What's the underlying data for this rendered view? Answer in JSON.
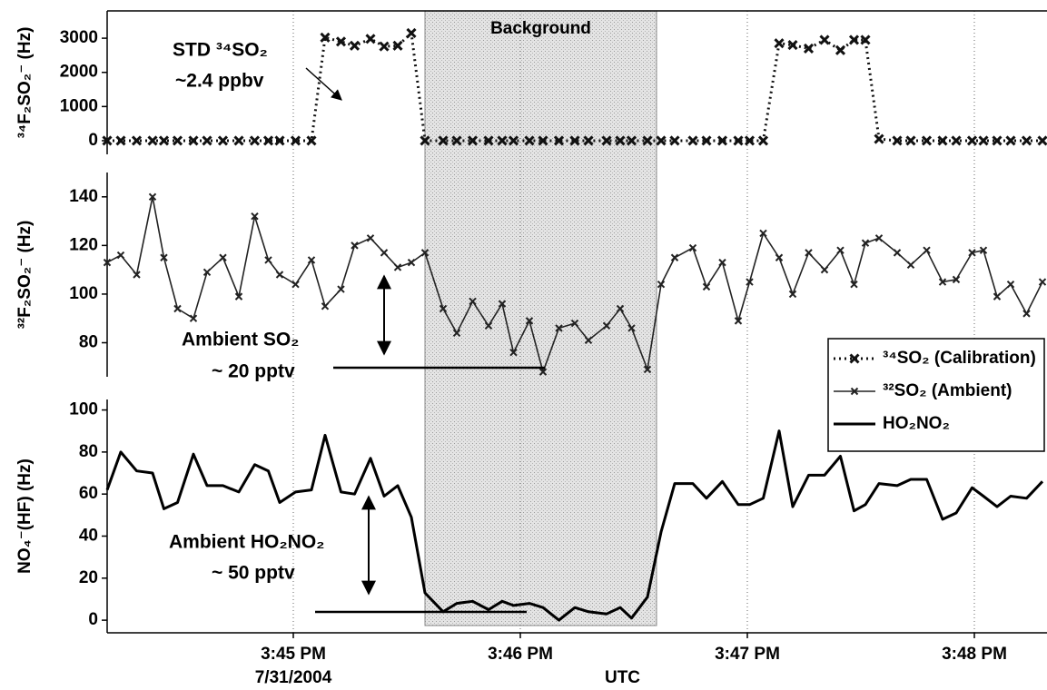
{
  "chart_data": [
    {
      "type": "line",
      "y_label": "³⁴F₂SO₂⁻ (Hz)",
      "x": [
        44.18,
        44.24,
        44.31,
        44.38,
        44.43,
        44.49,
        44.56,
        44.62,
        44.69,
        44.76,
        44.83,
        44.89,
        44.94,
        45.01,
        45.08,
        45.14,
        45.21,
        45.27,
        45.34,
        45.4,
        45.46,
        45.52,
        45.58,
        45.66,
        45.72,
        45.79,
        45.86,
        45.92,
        45.97,
        46.04,
        46.1,
        46.17,
        46.24,
        46.3,
        46.38,
        46.44,
        46.49,
        46.56,
        46.62,
        46.68,
        46.76,
        46.82,
        46.89,
        46.96,
        47.01,
        47.07,
        47.14,
        47.2,
        47.27,
        47.34,
        47.41,
        47.47,
        47.52,
        47.58,
        47.66,
        47.72,
        47.79,
        47.86,
        47.92,
        47.99,
        48.04,
        48.1,
        48.16,
        48.23,
        48.3
      ],
      "series": [
        {
          "name": "³⁴SO₂ (Calibration)",
          "color": "#111111",
          "line_style": "dotted",
          "marker": "x",
          "line_width": 3,
          "values": [
            0,
            0,
            0,
            0,
            0,
            0,
            0,
            0,
            0,
            0,
            0,
            0,
            0,
            0,
            0,
            3020,
            2900,
            2780,
            2980,
            2760,
            2780,
            3150,
            0,
            0,
            0,
            0,
            0,
            0,
            0,
            0,
            0,
            0,
            0,
            0,
            0,
            0,
            0,
            0,
            0,
            0,
            0,
            0,
            0,
            0,
            0,
            0,
            2850,
            2800,
            2700,
            2950,
            2650,
            2950,
            2950,
            50,
            0,
            0,
            0,
            0,
            0,
            0,
            0,
            0,
            0,
            0,
            0
          ]
        }
      ],
      "xlim": [
        44.18,
        48.32
      ],
      "ylim": [
        -400,
        3800
      ],
      "yticks": [
        0,
        1000,
        2000,
        3000
      ],
      "shaded_x": [
        45.58,
        46.6
      ],
      "shaded_label": "Background",
      "annotations": [
        "STD ³⁴SO₂",
        "~2.4 ppbv"
      ]
    },
    {
      "type": "line",
      "y_label": "³²F₂SO₂⁻ (Hz)",
      "x": [
        44.18,
        44.24,
        44.31,
        44.38,
        44.43,
        44.49,
        44.56,
        44.62,
        44.69,
        44.76,
        44.83,
        44.89,
        44.94,
        45.01,
        45.08,
        45.14,
        45.21,
        45.27,
        45.34,
        45.4,
        45.46,
        45.52,
        45.58,
        45.66,
        45.72,
        45.79,
        45.86,
        45.92,
        45.97,
        46.04,
        46.1,
        46.17,
        46.24,
        46.3,
        46.38,
        46.44,
        46.49,
        46.56,
        46.62,
        46.68,
        46.76,
        46.82,
        46.89,
        46.96,
        47.01,
        47.07,
        47.14,
        47.2,
        47.27,
        47.34,
        47.41,
        47.47,
        47.52,
        47.58,
        47.66,
        47.72,
        47.79,
        47.86,
        47.92,
        47.99,
        48.04,
        48.1,
        48.16,
        48.23,
        48.3
      ],
      "series": [
        {
          "name": "³²SO₂ (Ambient)",
          "color": "#222222",
          "line_style": "solid",
          "marker": "x",
          "line_width": 1.6,
          "values": [
            113,
            116,
            108,
            140,
            115,
            94,
            90,
            109,
            115,
            99,
            132,
            114,
            108,
            104,
            114,
            95,
            102,
            120,
            123,
            117,
            111,
            113,
            117,
            94,
            84,
            97,
            87,
            96,
            76,
            89,
            68,
            86,
            88,
            81,
            87,
            94,
            86,
            69,
            104,
            115,
            119,
            103,
            113,
            89,
            105,
            125,
            115,
            100,
            117,
            110,
            118,
            104,
            121,
            123,
            117,
            112,
            118,
            105,
            106,
            117,
            118,
            99,
            104,
            92,
            105
          ]
        }
      ],
      "xlim": [
        44.18,
        48.32
      ],
      "ylim": [
        66,
        150
      ],
      "yticks": [
        80,
        100,
        120,
        140
      ],
      "annotations": [
        "Ambient SO₂",
        "~ 20 pptv"
      ]
    },
    {
      "type": "line",
      "y_label": "NO₄⁻(HF) (Hz)",
      "x": [
        44.18,
        44.24,
        44.31,
        44.38,
        44.43,
        44.49,
        44.56,
        44.62,
        44.69,
        44.76,
        44.83,
        44.89,
        44.94,
        45.01,
        45.08,
        45.14,
        45.21,
        45.27,
        45.34,
        45.4,
        45.46,
        45.52,
        45.58,
        45.66,
        45.72,
        45.79,
        45.86,
        45.92,
        45.97,
        46.04,
        46.1,
        46.17,
        46.24,
        46.3,
        46.38,
        46.44,
        46.49,
        46.56,
        46.62,
        46.68,
        46.76,
        46.82,
        46.89,
        46.96,
        47.01,
        47.07,
        47.14,
        47.2,
        47.27,
        47.34,
        47.41,
        47.47,
        47.52,
        47.58,
        47.66,
        47.72,
        47.79,
        47.86,
        47.92,
        47.99,
        48.04,
        48.1,
        48.16,
        48.23,
        48.3
      ],
      "series": [
        {
          "name": "HO₂NO₂",
          "color": "#000000",
          "line_style": "solid",
          "marker": "none",
          "line_width": 3,
          "values": [
            62,
            80,
            71,
            70,
            53,
            56,
            79,
            64,
            64,
            61,
            74,
            71,
            56,
            61,
            62,
            88,
            61,
            60,
            77,
            59,
            64,
            49,
            13,
            4,
            8,
            9,
            5,
            9,
            7,
            8,
            6,
            0,
            6,
            4,
            3,
            6,
            1,
            11,
            42,
            65,
            65,
            58,
            66,
            55,
            55,
            58,
            90,
            54,
            69,
            69,
            78,
            52,
            55,
            65,
            64,
            67,
            67,
            48,
            51,
            63,
            59,
            54,
            59,
            58,
            66
          ]
        }
      ],
      "xlim": [
        44.18,
        48.32
      ],
      "ylim": [
        -6,
        105
      ],
      "yticks": [
        0,
        20,
        40,
        60,
        80,
        100
      ],
      "xticks": [
        {
          "value": 45,
          "label": "3:45 PM"
        },
        {
          "value": 46,
          "label": "3:46 PM"
        },
        {
          "value": 47,
          "label": "3:47 PM"
        },
        {
          "value": 48,
          "label": "3:48 PM"
        }
      ],
      "date_label": "7/31/2004",
      "x_label": "UTC",
      "annotations": [
        "Ambient HO₂NO₂",
        "~ 50 pptv"
      ]
    }
  ]
}
